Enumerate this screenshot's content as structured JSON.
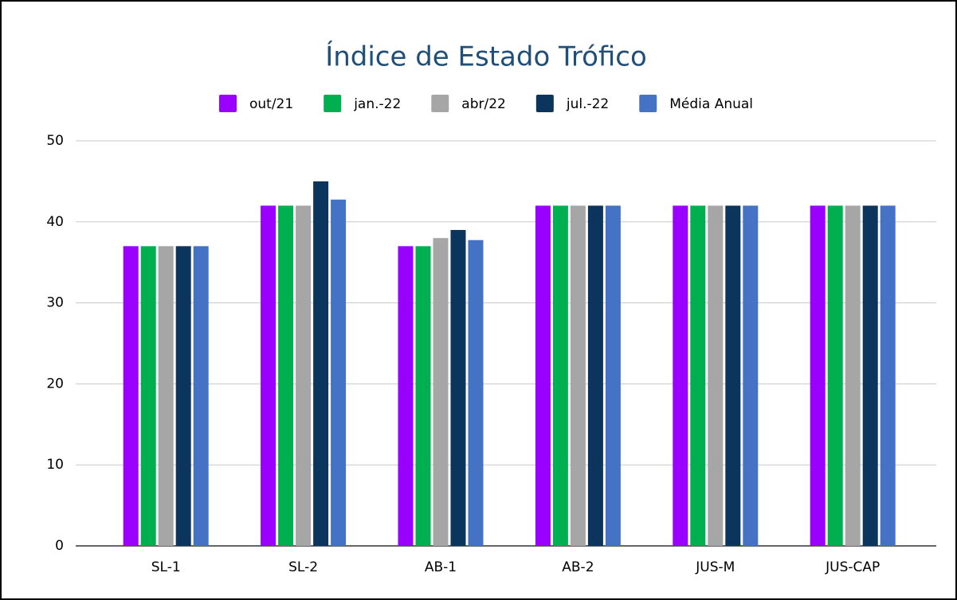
{
  "chart_data": {
    "type": "bar",
    "title": "Índice de Estado Trófico",
    "categories": [
      "SL-1",
      "SL-2",
      "AB-1",
      "AB-2",
      "JUS-M",
      "JUS-CAP"
    ],
    "series": [
      {
        "name": "out/21",
        "color": "#9900ff",
        "values": [
          37,
          42,
          37,
          42,
          42,
          42
        ]
      },
      {
        "name": "jan.-22",
        "color": "#00b050",
        "values": [
          37,
          42,
          37,
          42,
          42,
          42
        ]
      },
      {
        "name": "abr/22",
        "color": "#a6a6a6",
        "values": [
          37,
          42,
          38,
          42,
          42,
          42
        ]
      },
      {
        "name": "jul.-22",
        "color": "#0b355c",
        "values": [
          37,
          45,
          39,
          42,
          42,
          42
        ]
      },
      {
        "name": "Média Anual",
        "color": "#4472c4",
        "values": [
          37,
          42.75,
          37.75,
          42,
          42,
          42
        ]
      }
    ],
    "ylim": [
      0,
      50
    ],
    "yticks": [
      0,
      10,
      20,
      30,
      40,
      50
    ],
    "grid": true,
    "legend": "top"
  }
}
